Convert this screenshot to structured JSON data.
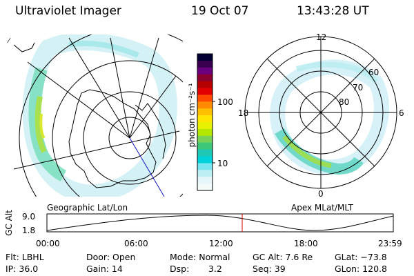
{
  "header": {
    "title": "Ultraviolet Imager",
    "date": "19 Oct 07",
    "time": "13:43:28 UT"
  },
  "colorbar": {
    "label": "photon cm⁻²s⁻¹",
    "ticks": [
      "100",
      "10"
    ],
    "colors": [
      "#000033",
      "#3a0050",
      "#6a0080",
      "#8a0030",
      "#b40000",
      "#e00000",
      "#ff4a00",
      "#ff8c00",
      "#ffbf00",
      "#ffe600",
      "#e6f000",
      "#b4e600",
      "#78d25a",
      "#3cc878",
      "#1ec8b4",
      "#00d2dc",
      "#78e6f0",
      "#bcf0f5",
      "#e6f5f8",
      "#f2fafa"
    ]
  },
  "left_map": {
    "label": "Geographic Lat/Lon"
  },
  "right_map": {
    "label": "Apex MLat/MLT",
    "mlt_labels": {
      "top": "12",
      "left": "18",
      "right": "6",
      "bottom": "0"
    },
    "lat_labels": [
      "60",
      "70",
      "80"
    ]
  },
  "timeline": {
    "ylabel": "GC Alt",
    "y_ticks": [
      "9.0",
      "1.8"
    ],
    "x_ticks": [
      "00:00",
      "06:00",
      "12:00",
      "18:00",
      "23:59"
    ],
    "marker_time": "13:43:28"
  },
  "footer": {
    "rows": [
      [
        "Flt: LBHL",
        "Door: Open",
        "Mode: Normal",
        "GC Alt: 7.6 Re",
        "GLat: −73.8"
      ],
      [
        "IP: 36.0",
        "Gain: 14",
        "Dsp:",
        "3.2",
        "Seq: 39",
        "GLon: 120.8"
      ]
    ]
  }
}
